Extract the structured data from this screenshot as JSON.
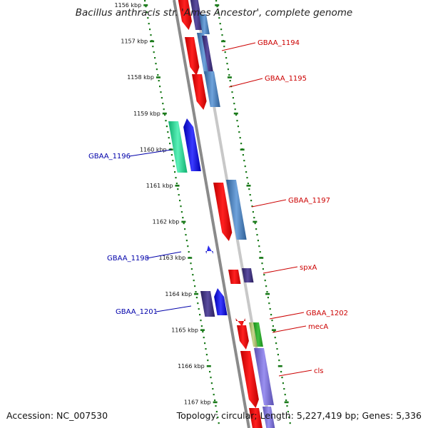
{
  "title": "Bacillus anthracis str. 'Ames Ancestor', complete genome",
  "footer": {
    "accession": "Accession: NC_007530",
    "topology": "Topology: circular; Length: 5,227,419 bp; Genes: 5,336"
  },
  "ticks": [
    "1156 kbp",
    "1157 kbp",
    "1158 kbp",
    "1159 kbp",
    "1160 kbp",
    "1161 kbp",
    "1162 kbp",
    "1163 kbp",
    "1164 kbp",
    "1165 kbp",
    "1166 kbp",
    "1167 kbp"
  ],
  "genes_right": [
    {
      "name": "GBAA_1194"
    },
    {
      "name": "GBAA_1195"
    },
    {
      "name": "GBAA_1197"
    },
    {
      "name": "spxA"
    },
    {
      "name": "GBAA_1202"
    },
    {
      "name": "mecA"
    },
    {
      "name": "cls"
    }
  ],
  "genes_left": [
    {
      "name": "GBAA_1196"
    },
    {
      "name": "GBAA_1198"
    },
    {
      "name": "GBAA_1201"
    }
  ],
  "colors": {
    "red": "#ff0000",
    "blue": "#0000ff",
    "steelblue": "#4f86c2",
    "navy": "#3b2f7a",
    "green": "#22cc88",
    "purple": "#7a6fd0",
    "tick": "#1a7a1a",
    "backbone": "#888888",
    "label_red": "#cc0000",
    "label_blue": "#0000aa"
  }
}
